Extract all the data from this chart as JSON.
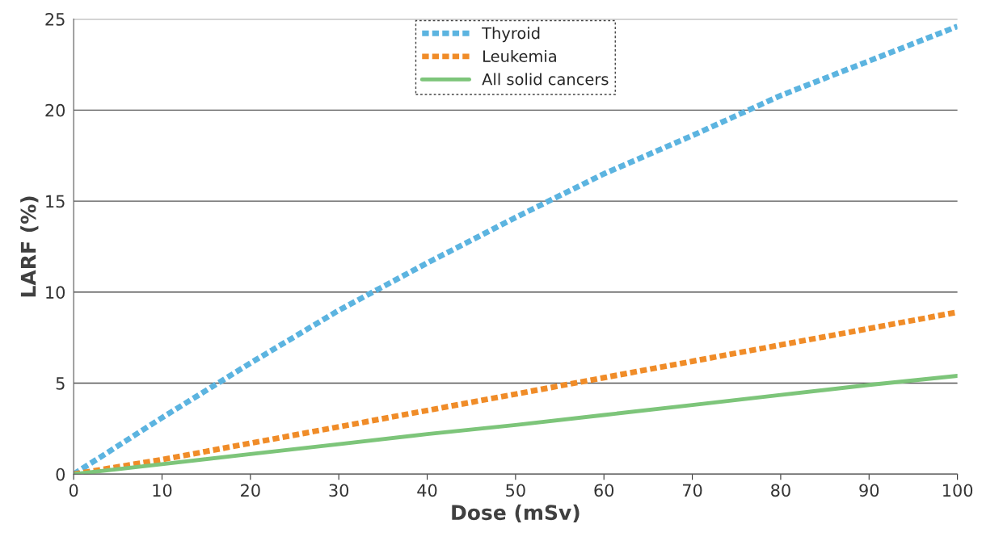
{
  "chart_data": {
    "type": "line",
    "xlabel": "Dose (mSv)",
    "ylabel": "LARF (%)",
    "x": [
      0,
      10,
      20,
      30,
      40,
      50,
      60,
      70,
      80,
      90,
      100
    ],
    "series": [
      {
        "name": "Thyroid",
        "color": "#5cb4e0",
        "line_style": "dotted",
        "values": [
          0,
          3.1,
          6.1,
          9.0,
          11.6,
          14.1,
          16.5,
          18.6,
          20.8,
          22.7,
          24.6
        ]
      },
      {
        "name": "Leukemia",
        "color": "#f08c28",
        "line_style": "dotted",
        "values": [
          0,
          0.8,
          1.7,
          2.6,
          3.5,
          4.4,
          5.3,
          6.2,
          7.1,
          8.0,
          8.9
        ]
      },
      {
        "name": "All solid cancers",
        "color": "#7dc57a",
        "line_style": "solid",
        "values": [
          0,
          0.55,
          1.1,
          1.65,
          2.2,
          2.7,
          3.25,
          3.8,
          4.35,
          4.9,
          5.4
        ]
      }
    ],
    "xlim": [
      0,
      100
    ],
    "xticks": [
      0,
      10,
      20,
      30,
      40,
      50,
      60,
      70,
      80,
      90,
      100
    ],
    "ylim": [
      0,
      25
    ],
    "yticks": [
      0,
      5,
      10,
      15,
      20,
      25
    ],
    "grid": "y",
    "legend": "top",
    "marker": "none"
  }
}
